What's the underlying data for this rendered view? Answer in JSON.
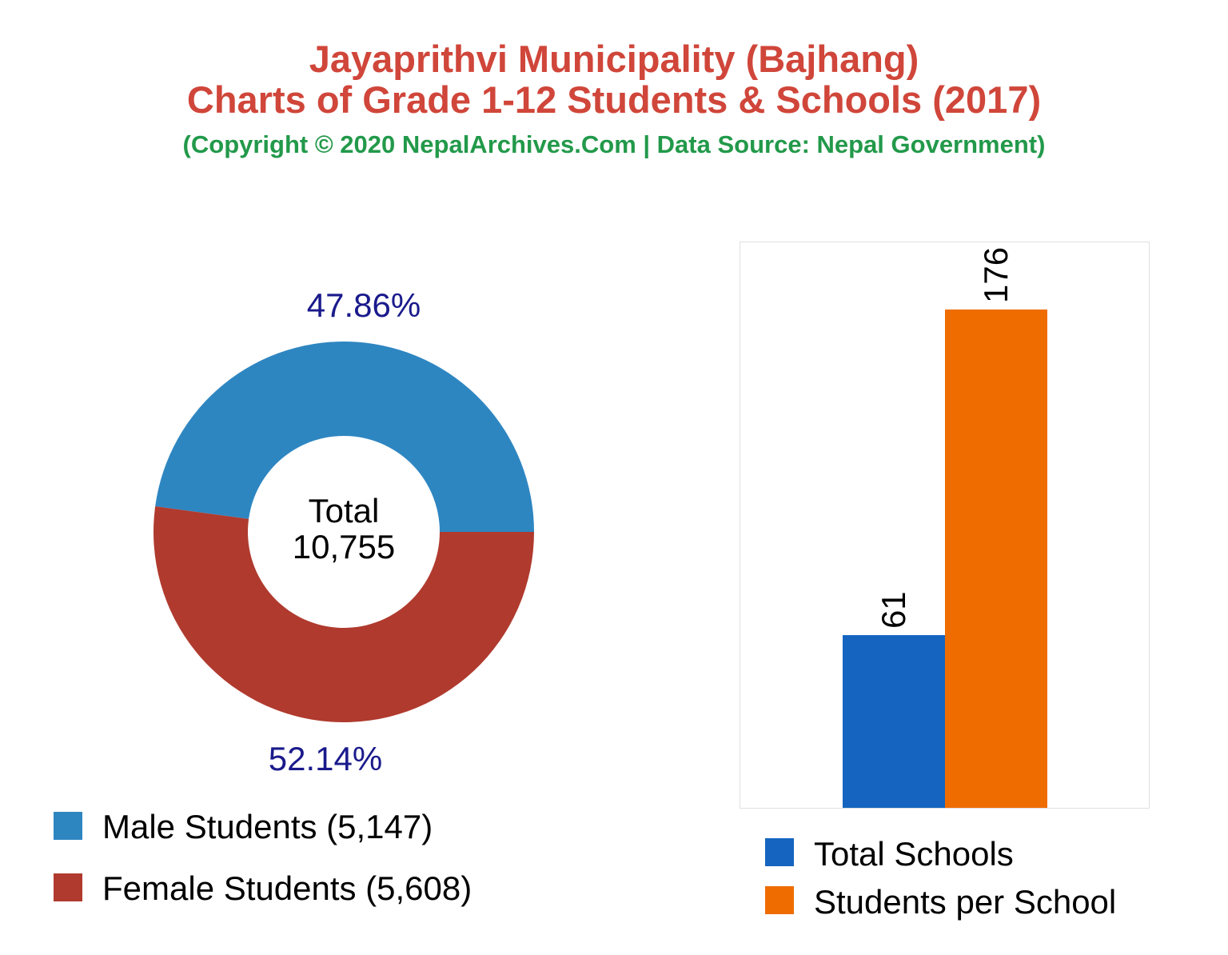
{
  "header": {
    "title_line1": "Jayaprithvi Municipality (Bajhang)",
    "title_line2": "Charts of Grade 1-12 Students & Schools (2017)",
    "subtitle": "(Copyright © 2020 NepalArchives.Com | Data Source: Nepal Government)"
  },
  "colors": {
    "title": "#d0463a",
    "subtitle": "#22994a",
    "pct_label": "#1a1a8c",
    "male": "#2e86c1",
    "female": "#b03a2e",
    "schools": "#1565c0",
    "students_per_school": "#ef6c00"
  },
  "chart_data": [
    {
      "type": "pie",
      "variant": "donut",
      "center_text": [
        "Total",
        "10,755"
      ],
      "slices": [
        {
          "name": "Male Students (5,147)",
          "value": 5147,
          "percent_label": "47.86%"
        },
        {
          "name": "Female Students (5,608)",
          "value": 5608,
          "percent_label": "52.14%"
        }
      ],
      "legend_placement": "bottom-left"
    },
    {
      "type": "bar",
      "categories": [
        "Total Schools",
        "Students per School"
      ],
      "values": [
        61,
        176
      ],
      "data_labels": [
        "61",
        "176"
      ],
      "ylim": [
        0,
        200
      ],
      "grid": false,
      "legend_placement": "bottom"
    }
  ]
}
